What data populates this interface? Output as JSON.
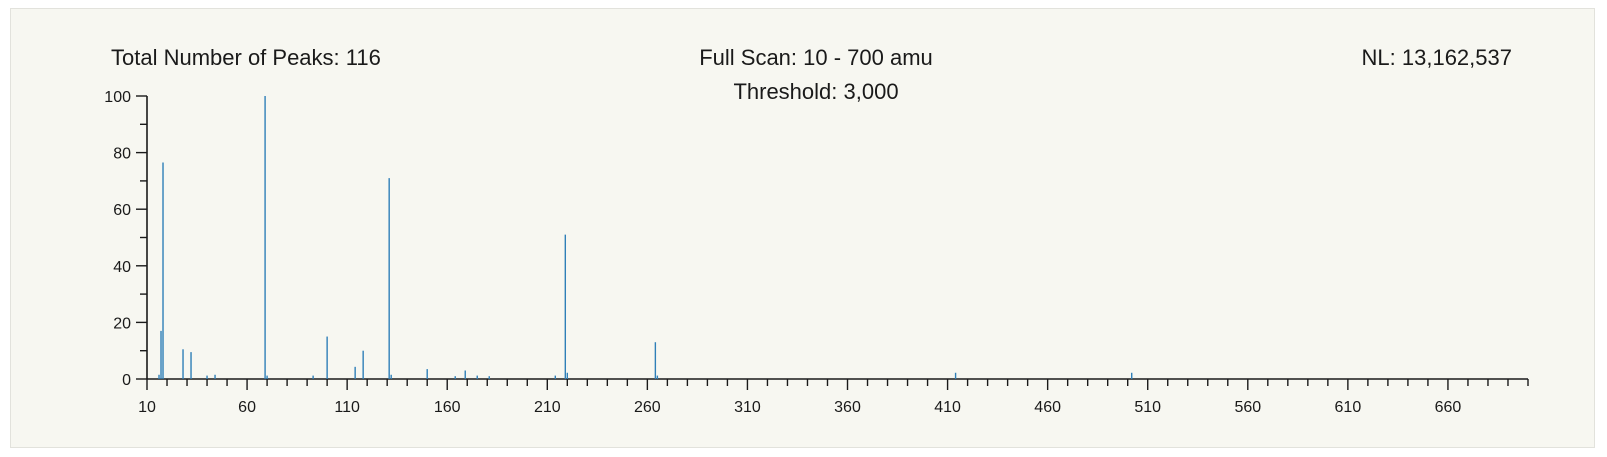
{
  "header": {
    "total_peaks": "Total Number of Peaks: 116",
    "scan_range": "Full Scan: 10 - 700 amu",
    "threshold": "Threshold: 3,000",
    "nl": "NL: 13,162,537"
  },
  "colors": {
    "peak": "#2f7fb8",
    "axis": "#1a1a1a",
    "background": "#f7f7f1"
  },
  "chart_data": {
    "type": "bar",
    "title": "",
    "xlabel": "",
    "ylabel": "",
    "xlim": [
      10,
      700
    ],
    "ylim": [
      0,
      100
    ],
    "x_ticks": [
      10,
      60,
      110,
      160,
      210,
      260,
      310,
      360,
      410,
      460,
      510,
      560,
      610,
      660
    ],
    "y_ticks": [
      0,
      20,
      40,
      60,
      80,
      100
    ],
    "grid": false,
    "series": [
      {
        "x": [
          16,
          17,
          18,
          28,
          32,
          40,
          44,
          69,
          70,
          93,
          100,
          114,
          118,
          131,
          132,
          150,
          164,
          169,
          175,
          181,
          214,
          219,
          220,
          264,
          265,
          414,
          502
        ],
        "values": [
          1.5,
          17,
          76.5,
          10.5,
          9.5,
          1.2,
          1.5,
          100,
          1.2,
          1.2,
          15,
          4.3,
          10,
          71,
          1.5,
          3.5,
          1,
          3,
          1.2,
          1,
          1.2,
          51,
          2.2,
          13,
          1.2,
          2.2,
          2.2
        ]
      }
    ]
  }
}
